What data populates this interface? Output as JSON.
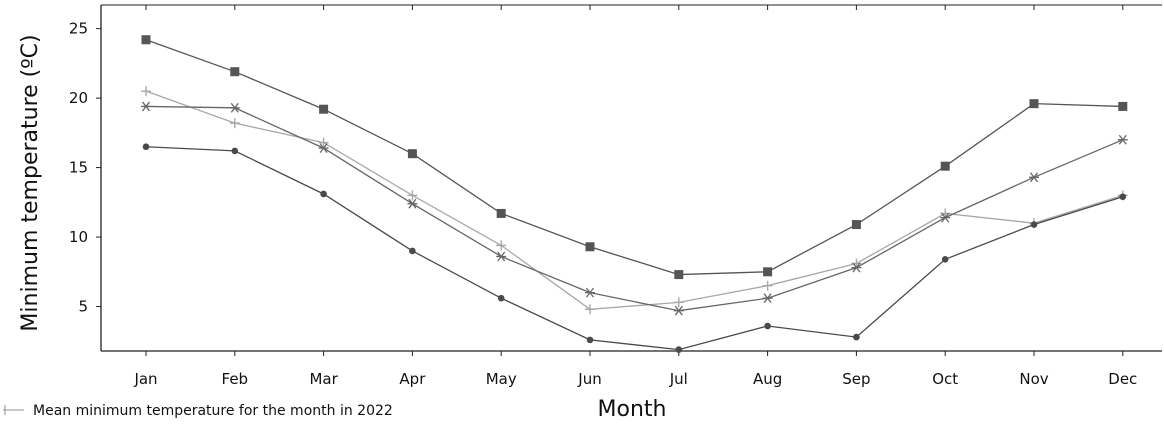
{
  "chart_data": {
    "type": "line",
    "categories": [
      "Jan",
      "Feb",
      "Mar",
      "Apr",
      "May",
      "Jun",
      "Jul",
      "Aug",
      "Sep",
      "Oct",
      "Nov",
      "Dec"
    ],
    "xlabel": "Month",
    "ylabel": "Minimum temperature (ºC)",
    "ylim": [
      1.8,
      26.7
    ],
    "yticks": [
      5,
      10,
      15,
      20,
      25
    ],
    "grid": false,
    "legend_position": "bottom-left",
    "series": [
      {
        "marker": "square",
        "color": "#555555",
        "values": [
          24.2,
          21.9,
          19.2,
          16.0,
          11.7,
          9.3,
          7.3,
          7.5,
          10.9,
          15.1,
          19.6,
          19.4
        ]
      },
      {
        "name": "Mean minimum temperature for the month in 2022",
        "marker": "plus",
        "color": "#a8a8a8",
        "values": [
          20.5,
          18.2,
          16.8,
          13.0,
          9.4,
          4.8,
          5.3,
          6.5,
          8.1,
          11.7,
          11.0,
          13.0
        ]
      },
      {
        "marker": "asterisk",
        "color": "#666666",
        "values": [
          19.4,
          19.3,
          16.4,
          12.4,
          8.6,
          6.0,
          4.7,
          5.6,
          7.8,
          11.4,
          14.3,
          17.0
        ]
      },
      {
        "marker": "circle",
        "color": "#4a4a4a",
        "values": [
          16.5,
          16.2,
          13.1,
          9.0,
          5.6,
          2.6,
          1.9,
          3.6,
          2.8,
          8.4,
          10.9,
          12.9
        ]
      }
    ]
  }
}
